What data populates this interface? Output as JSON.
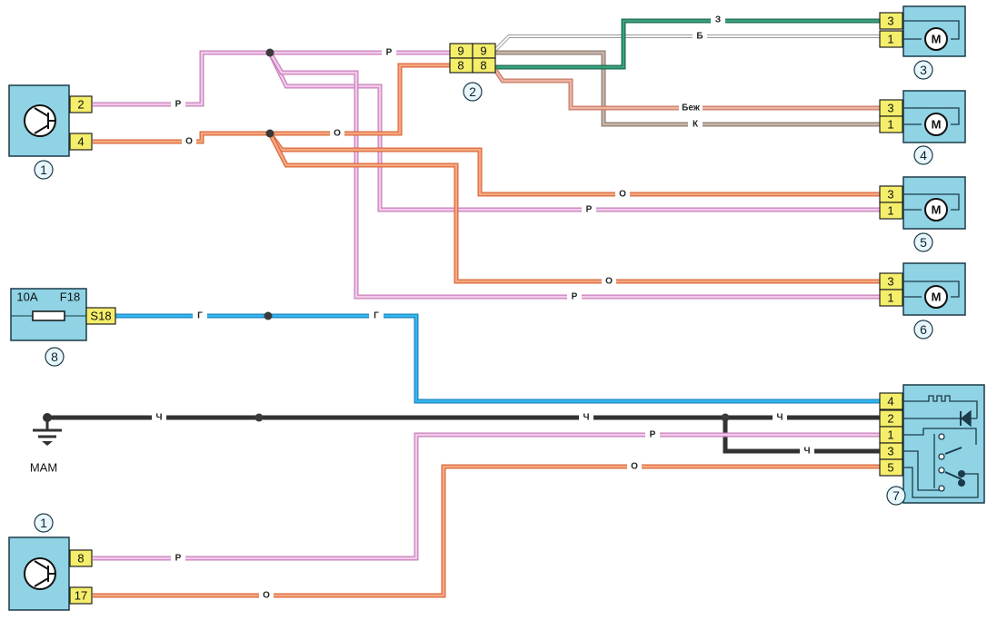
{
  "components": {
    "c1_top": {
      "number": "1",
      "pins": [
        "2",
        "4"
      ]
    },
    "c1_bottom": {
      "number": "1",
      "pins": [
        "8",
        "17"
      ]
    },
    "c2": {
      "number": "2",
      "pins": [
        "9",
        "9",
        "8",
        "8"
      ]
    },
    "c3": {
      "number": "3",
      "pins": [
        "3",
        "1"
      ],
      "motor": "M"
    },
    "c4": {
      "number": "4",
      "pins": [
        "3",
        "1"
      ],
      "motor": "M"
    },
    "c5": {
      "number": "5",
      "pins": [
        "3",
        "1"
      ],
      "motor": "M"
    },
    "c6": {
      "number": "6",
      "pins": [
        "3",
        "1"
      ],
      "motor": "M"
    },
    "c7": {
      "number": "7",
      "pins": [
        "4",
        "2",
        "1",
        "3",
        "5"
      ]
    },
    "c8": {
      "number": "8",
      "rating": "10A",
      "fuse": "F18",
      "pin": "S18"
    },
    "ground": {
      "label": "MAM"
    }
  },
  "wire_labels": {
    "pink": "Р",
    "orange": "О",
    "green": "З",
    "white": "Б",
    "beige": "Беж",
    "brown": "К",
    "blue": "Г",
    "black": "Ч"
  },
  "colors": {
    "pink": "#e8a6dc",
    "orange": "#ef8a5a",
    "green": "#2e8a6a",
    "white": "#ffffff",
    "beige": "#e3a08a",
    "brown": "#b59f93",
    "blue": "#2aa6dc",
    "black": "#3a3a3a",
    "component": "#8fd3e4",
    "pin": "#f4ee6a"
  }
}
